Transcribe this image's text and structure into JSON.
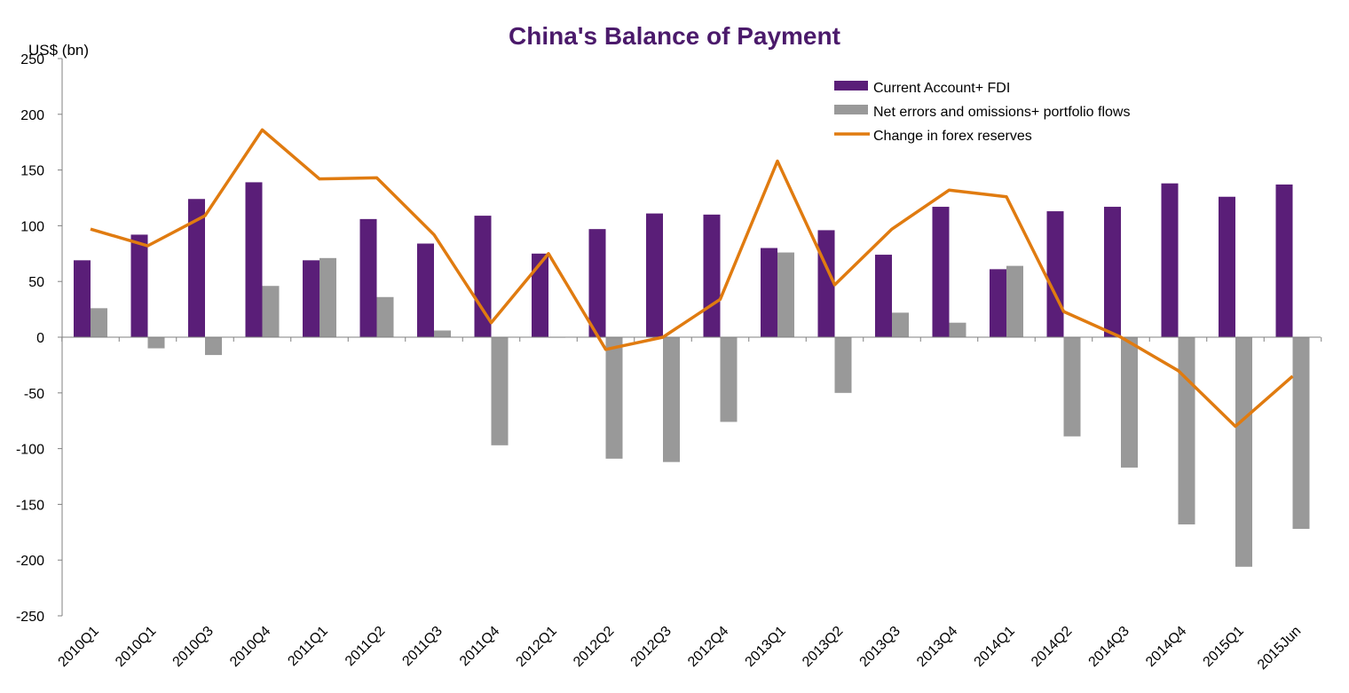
{
  "chart_data": {
    "type": "bar",
    "title": "China's Balance of Payment",
    "ylabel": "US$ (bn)",
    "xlabel": "",
    "ylim": [
      -250,
      250
    ],
    "yticks": [
      250,
      200,
      150,
      100,
      50,
      0,
      -50,
      -100,
      -150,
      -200,
      -250
    ],
    "categories": [
      "2010Q1",
      "2010Q1",
      "2010Q3",
      "2010Q4",
      "2011Q1",
      "2011Q2",
      "2011Q3",
      "2011Q4",
      "2012Q1",
      "2012Q2",
      "2012Q3",
      "2012Q4",
      "2013Q1",
      "2013Q2",
      "2013Q3",
      "2013Q4",
      "2014Q1",
      "2014Q2",
      "2014Q3",
      "2014Q4",
      "2015Q1",
      "2015Jun"
    ],
    "series": [
      {
        "name": "Current Account+ FDI",
        "kind": "bar",
        "color": "#5a1e78",
        "values": [
          69,
          92,
          124,
          139,
          69,
          106,
          84,
          109,
          75,
          97,
          111,
          110,
          80,
          96,
          74,
          117,
          61,
          113,
          117,
          138,
          126,
          137
        ]
      },
      {
        "name": "Net errors and omissions+ portfolio flows",
        "kind": "bar",
        "color": "#999999",
        "values": [
          26,
          -10,
          -16,
          46,
          71,
          36,
          6,
          -97,
          0,
          -109,
          -112,
          -76,
          76,
          -50,
          22,
          13,
          64,
          -89,
          -117,
          -168,
          -206,
          -172
        ]
      },
      {
        "name": "Change in forex reserves",
        "kind": "line",
        "color": "#e07b10",
        "values": [
          97,
          82,
          109,
          186,
          142,
          143,
          92,
          13,
          75,
          -11,
          0,
          34,
          158,
          47,
          97,
          132,
          126,
          23,
          0,
          -30,
          -80,
          -35
        ]
      }
    ],
    "legend_position": "top-right",
    "grid": false
  }
}
